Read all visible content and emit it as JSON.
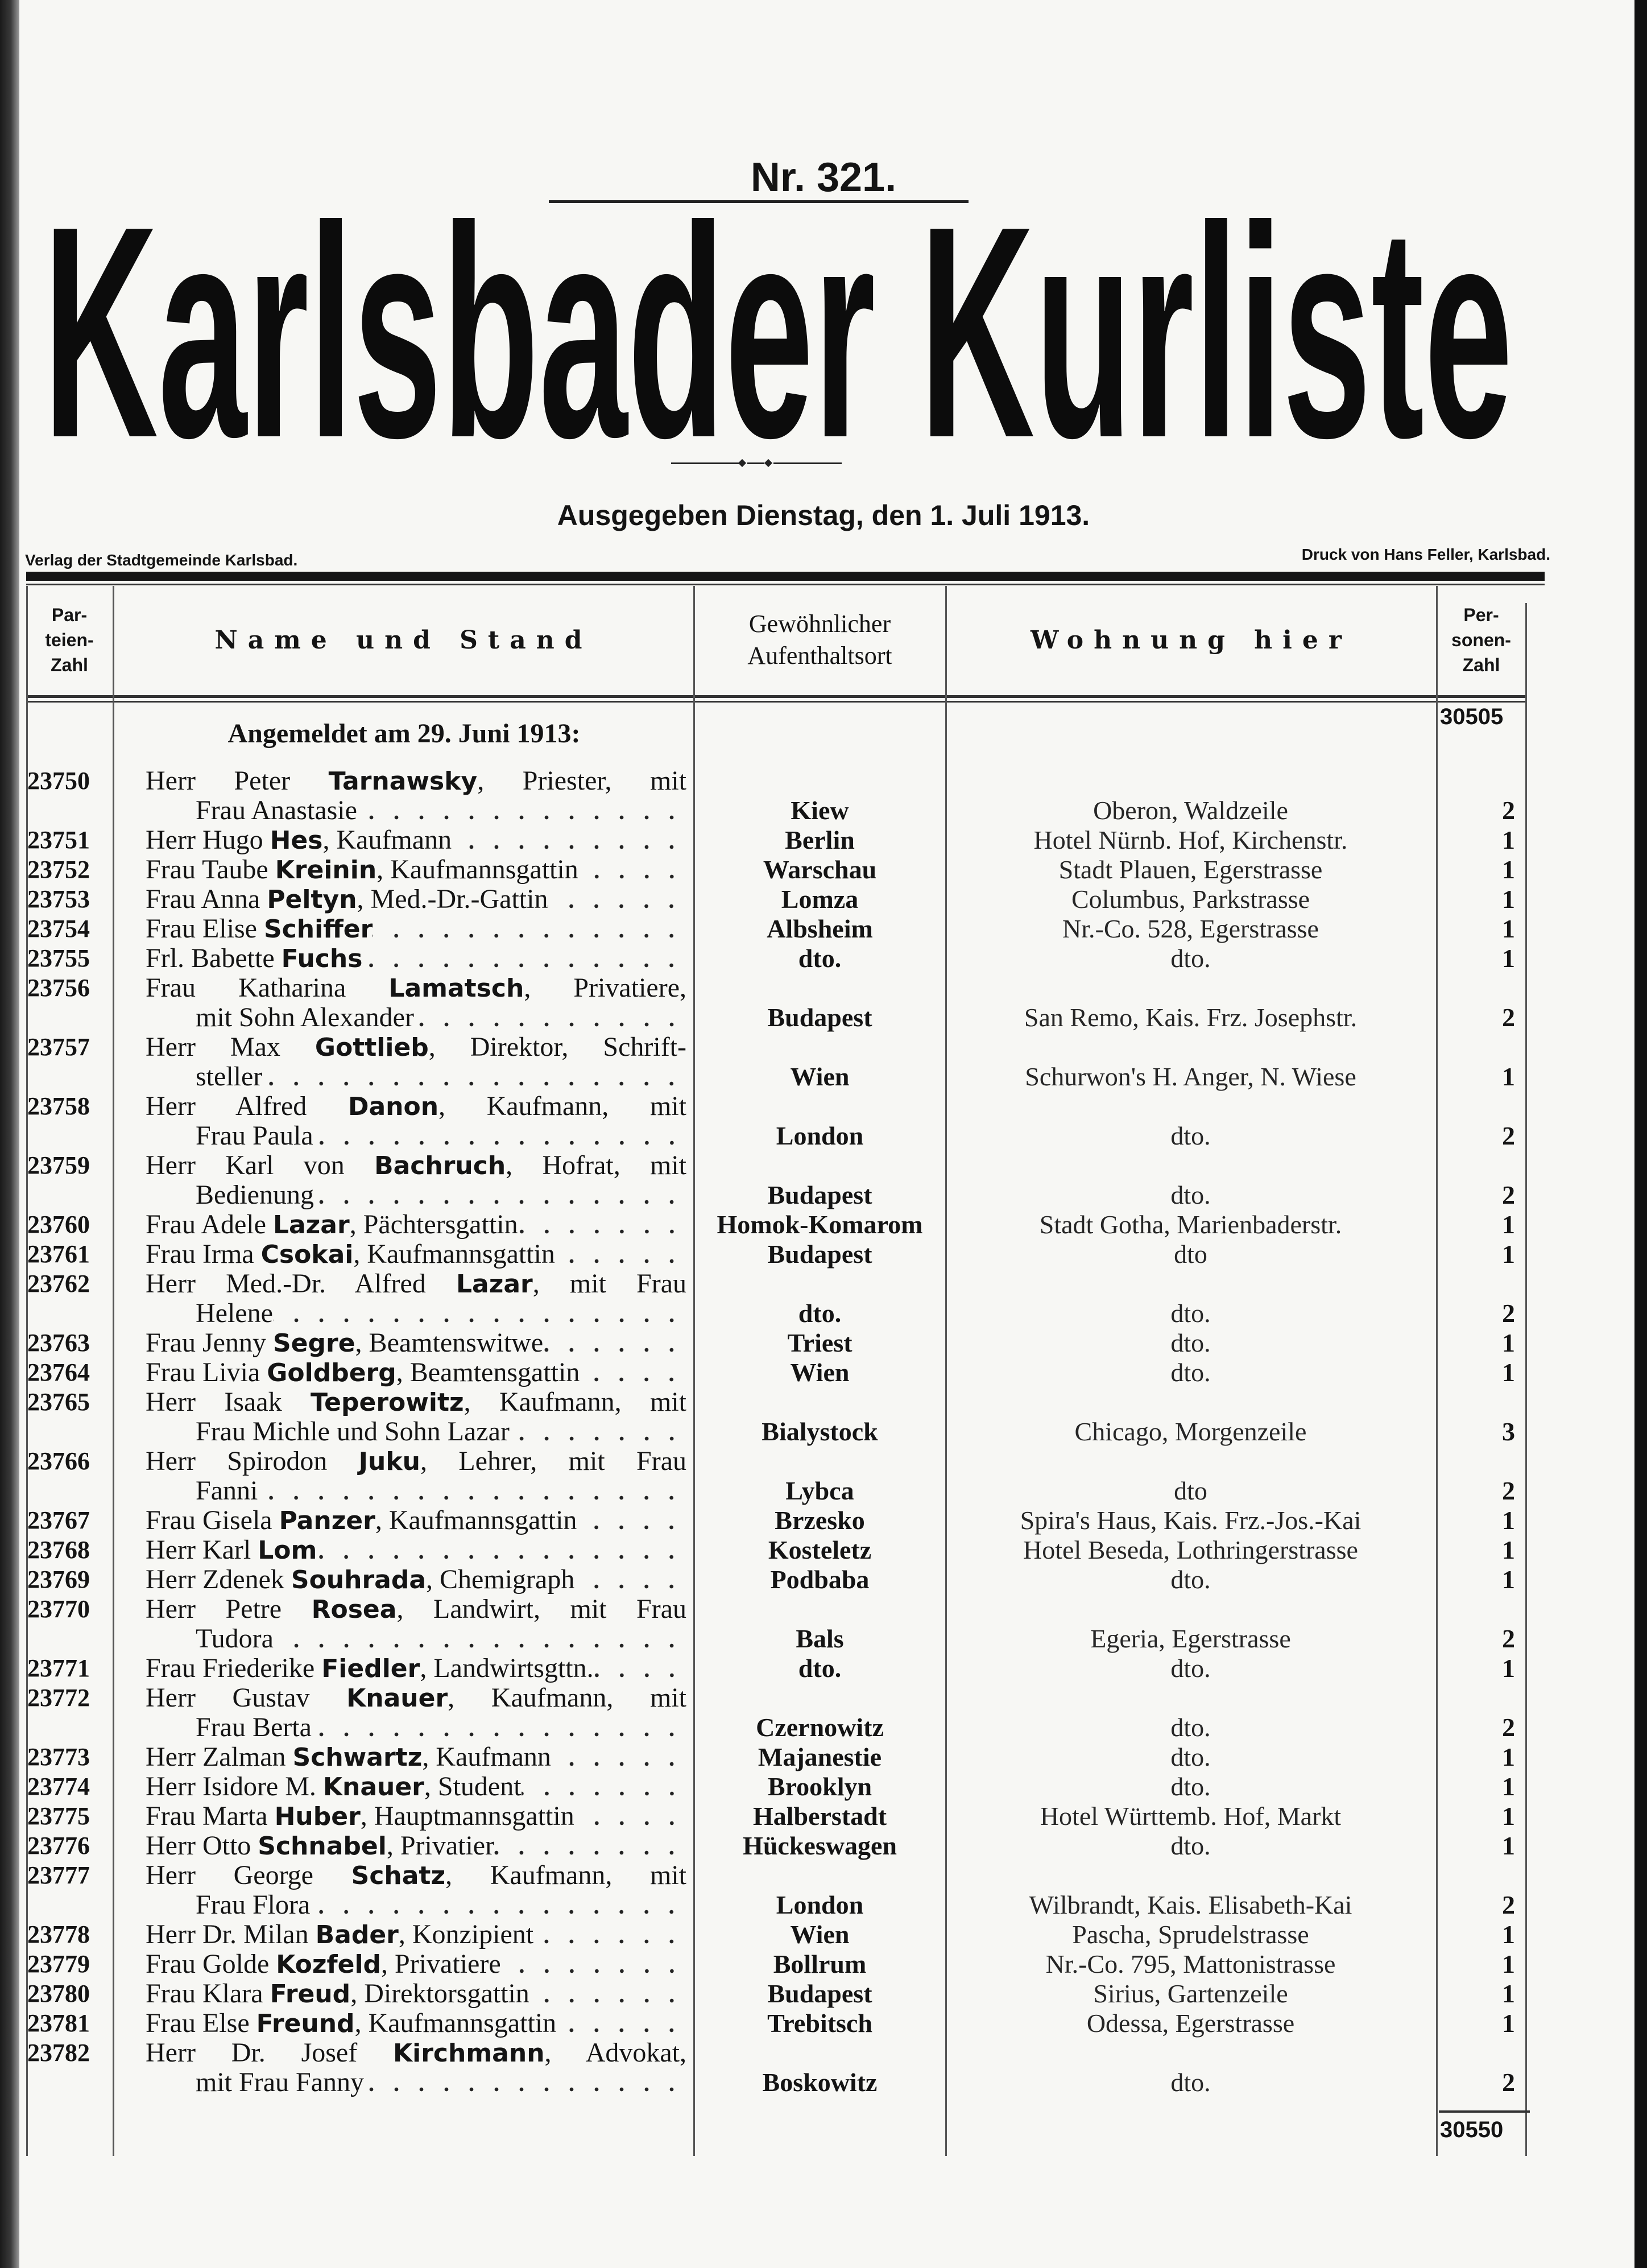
{
  "masthead": {
    "issue": "Nr. 321.",
    "title": "Karlsbader Kurliste",
    "issued": "Ausgegeben Dienstag, den 1. Juli 1913.",
    "publisher": "Verlag der Stadtgemeinde Karlsbad.",
    "printer": "Druck von Hans Feller, Karlsbad."
  },
  "table": {
    "headers": {
      "nr": "Par-\nteien-\nZahl",
      "name": "Name und Stand",
      "ort": "Gewöhnlicher\nAufenthaltsort",
      "wohnung": "Wohnung hier",
      "zahl": "Per-\nsonen-\nZahl"
    },
    "carried_total": "30505",
    "announcement": "Angemeldet am 29. Juni 1913:",
    "final_total": "30550",
    "entries": [
      {
        "nr": "23750",
        "prefix": "Herr Peter ",
        "surname": "Tarnawsky",
        "rest": ", Priester, mit",
        "cont": "Frau Anastasie",
        "ort": "Kiew",
        "wohnung": "Oberon, Waldzeile",
        "zahl": "2"
      },
      {
        "nr": "23751",
        "prefix": "Herr Hugo ",
        "surname": "Hes",
        "rest": ", Kaufmann",
        "ort": "Berlin",
        "wohnung": "Hotel Nürnb. Hof, Kirchenstr.",
        "zahl": "1"
      },
      {
        "nr": "23752",
        "prefix": "Frau Taube ",
        "surname": "Kreinin",
        "rest": ", Kaufmannsgattin",
        "ort": "Warschau",
        "wohnung": "Stadt Plauen, Egerstrasse",
        "zahl": "1"
      },
      {
        "nr": "23753",
        "prefix": "Frau Anna ",
        "surname": "Peltyn",
        "rest": ", Med.-Dr.-Gattin",
        "ort": "Lomza",
        "wohnung": "Columbus, Parkstrasse",
        "zahl": "1"
      },
      {
        "nr": "23754",
        "prefix": "Frau Elise ",
        "surname": "Schiffer",
        "rest": "",
        "ort": "Albsheim",
        "wohnung": "Nr.-Co. 528, Egerstrasse",
        "zahl": "1"
      },
      {
        "nr": "23755",
        "prefix": "Frl. Babette ",
        "surname": "Fuchs",
        "rest": "",
        "ort": "dto.",
        "wohnung": "dto.",
        "zahl": "1"
      },
      {
        "nr": "23756",
        "prefix": "Frau Katharina ",
        "surname": "Lamatsch",
        "rest": ", Privatiere,",
        "cont": "mit Sohn Alexander",
        "ort": "Budapest",
        "wohnung": "San Remo, Kais. Frz. Josephstr.",
        "zahl": "2"
      },
      {
        "nr": "23757",
        "prefix": "Herr Max ",
        "surname": "Gottlieb",
        "rest": ", Direktor, Schrift-",
        "cont": "steller",
        "ort": "Wien",
        "wohnung": "Schurwon's H. Anger, N. Wiese",
        "zahl": "1"
      },
      {
        "nr": "23758",
        "prefix": "Herr Alfred ",
        "surname": "Danon",
        "rest": ", Kaufmann, mit",
        "cont": "Frau Paula",
        "ort": "London",
        "wohnung": "dto.",
        "zahl": "2"
      },
      {
        "nr": "23759",
        "prefix": "Herr Karl von ",
        "surname": "Bachruch",
        "rest": ", Hofrat, mit",
        "cont": "Bedienung",
        "ort": "Budapest",
        "wohnung": "dto.",
        "zahl": "2"
      },
      {
        "nr": "23760",
        "prefix": "Frau Adele ",
        "surname": "Lazar",
        "rest": ", Pächtersgattin",
        "ort": "Homok-Komarom",
        "wohnung": "Stadt Gotha, Marienbaderstr.",
        "zahl": "1"
      },
      {
        "nr": "23761",
        "prefix": "Frau Irma ",
        "surname": "Csokai",
        "rest": ", Kaufmannsgattin",
        "ort": "Budapest",
        "wohnung": "dto",
        "zahl": "1"
      },
      {
        "nr": "23762",
        "prefix": "Herr Med.-Dr. Alfred ",
        "surname": "Lazar",
        "rest": ", mit Frau",
        "cont": "Helene",
        "ort": "dto.",
        "wohnung": "dto.",
        "zahl": "2"
      },
      {
        "nr": "23763",
        "prefix": "Frau Jenny ",
        "surname": "Segre",
        "rest": ", Beamtenswitwe",
        "ort": "Triest",
        "wohnung": "dto.",
        "zahl": "1"
      },
      {
        "nr": "23764",
        "prefix": "Frau Livia ",
        "surname": "Goldberg",
        "rest": ", Beamtensgattin",
        "ort": "Wien",
        "wohnung": "dto.",
        "zahl": "1"
      },
      {
        "nr": "23765",
        "prefix": "Herr Isaak ",
        "surname": "Teperowitz",
        "rest": ", Kaufmann, mit",
        "cont": "Frau Michle und Sohn Lazar",
        "ort": "Bialystock",
        "wohnung": "Chicago, Morgenzeile",
        "zahl": "3"
      },
      {
        "nr": "23766",
        "prefix": "Herr Spirodon ",
        "surname": "Juku",
        "rest": ", Lehrer, mit Frau",
        "cont": "Fanni",
        "ort": "Lybca",
        "wohnung": "dto",
        "zahl": "2"
      },
      {
        "nr": "23767",
        "prefix": "Frau Gisela ",
        "surname": "Panzer",
        "rest": ", Kaufmannsgattin",
        "ort": "Brzesko",
        "wohnung": "Spira's Haus, Kais. Frz.-Jos.-Kai",
        "zahl": "1"
      },
      {
        "nr": "23768",
        "prefix": "Herr Karl ",
        "surname": "Lom",
        "rest": "",
        "ort": "Kosteletz",
        "wohnung": "Hotel Beseda, Lothringerstrasse",
        "zahl": "1"
      },
      {
        "nr": "23769",
        "prefix": "Herr Zdenek ",
        "surname": "Souhrada",
        "rest": ", Chemigraph",
        "ort": "Podbaba",
        "wohnung": "dto.",
        "zahl": "1"
      },
      {
        "nr": "23770",
        "prefix": "Herr Petre ",
        "surname": "Rosea",
        "rest": ", Landwirt, mit Frau",
        "cont": "Tudora",
        "ort": "Bals",
        "wohnung": "Egeria, Egerstrasse",
        "zahl": "2"
      },
      {
        "nr": "23771",
        "prefix": "Frau Friederike ",
        "surname": "Fiedler",
        "rest": ", Landwirtsgttn.",
        "ort": "dto.",
        "wohnung": "dto.",
        "zahl": "1"
      },
      {
        "nr": "23772",
        "prefix": "Herr Gustav ",
        "surname": "Knauer",
        "rest": ", Kaufmann, mit",
        "cont": "Frau Berta",
        "ort": "Czernowitz",
        "wohnung": "dto.",
        "zahl": "2"
      },
      {
        "nr": "23773",
        "prefix": "Herr Zalman ",
        "surname": "Schwartz",
        "rest": ", Kaufmann",
        "ort": "Majanestie",
        "wohnung": "dto.",
        "zahl": "1"
      },
      {
        "nr": "23774",
        "prefix": "Herr Isidore M. ",
        "surname": "Knauer",
        "rest": ", Student",
        "ort": "Brooklyn",
        "wohnung": "dto.",
        "zahl": "1"
      },
      {
        "nr": "23775",
        "prefix": "Frau Marta ",
        "surname": "Huber",
        "rest": ", Hauptmannsgattin",
        "ort": "Halberstadt",
        "wohnung": "Hotel Württemb. Hof, Markt",
        "zahl": "1"
      },
      {
        "nr": "23776",
        "prefix": "Herr Otto ",
        "surname": "Schnabel",
        "rest": ", Privatier",
        "ort": "Hückeswagen",
        "wohnung": "dto.",
        "zahl": "1"
      },
      {
        "nr": "23777",
        "prefix": "Herr George ",
        "surname": "Schatz",
        "rest": ", Kaufmann, mit",
        "cont": "Frau Flora",
        "ort": "London",
        "wohnung": "Wilbrandt, Kais. Elisabeth-Kai",
        "zahl": "2"
      },
      {
        "nr": "23778",
        "prefix": "Herr Dr. Milan ",
        "surname": "Bader",
        "rest": ", Konzipient",
        "ort": "Wien",
        "wohnung": "Pascha, Sprudelstrasse",
        "zahl": "1"
      },
      {
        "nr": "23779",
        "prefix": "Frau Golde ",
        "surname": "Kozfeld",
        "rest": ", Privatiere",
        "ort": "Bollrum",
        "wohnung": "Nr.-Co. 795, Mattonistrasse",
        "zahl": "1"
      },
      {
        "nr": "23780",
        "prefix": "Frau Klara ",
        "surname": "Freud",
        "rest": ", Direktorsgattin",
        "ort": "Budapest",
        "wohnung": "Sirius, Gartenzeile",
        "zahl": "1"
      },
      {
        "nr": "23781",
        "prefix": "Frau Else ",
        "surname": "Freund",
        "rest": ", Kaufmannsgattin",
        "ort": "Trebitsch",
        "wohnung": "Odessa, Egerstrasse",
        "zahl": "1"
      },
      {
        "nr": "23782",
        "prefix": "Herr Dr. Josef ",
        "surname": "Kirchmann",
        "rest": ", Advokat,",
        "cont": "mit Frau Fanny",
        "ort": "Boskowitz",
        "wohnung": "dto.",
        "zahl": "2"
      }
    ]
  }
}
